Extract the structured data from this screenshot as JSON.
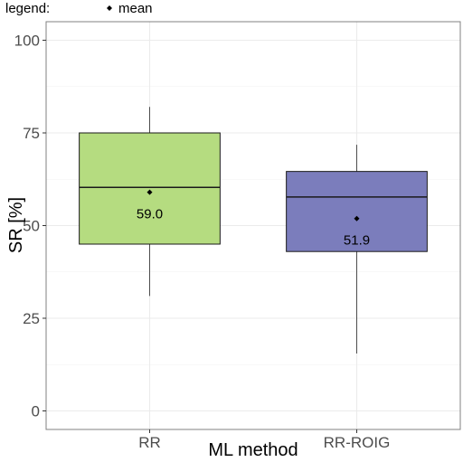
{
  "legend": {
    "label": "legend:",
    "item": "mean"
  },
  "chart_data": {
    "type": "boxplot",
    "xlabel": "ML method",
    "ylabel": "SR [%]",
    "ylim": [
      -5,
      105
    ],
    "yticks": [
      0,
      25,
      50,
      75,
      100
    ],
    "grid": true,
    "legend_position": "top-left",
    "categories": [
      "RR",
      "RR-ROIG"
    ],
    "boxes": [
      {
        "category": "RR",
        "whisker_low": 31,
        "q1": 45,
        "median": 60.3,
        "q3": 75,
        "whisker_high": 82,
        "mean": 59.0,
        "mean_label": "59.0",
        "color": "#b5dc80"
      },
      {
        "category": "RR-ROIG",
        "whisker_low": 15.5,
        "q1": 43,
        "median": 57.7,
        "q3": 64.6,
        "whisker_high": 71.8,
        "mean": 51.9,
        "mean_label": "51.9",
        "color": "#7b7dbc"
      }
    ]
  }
}
